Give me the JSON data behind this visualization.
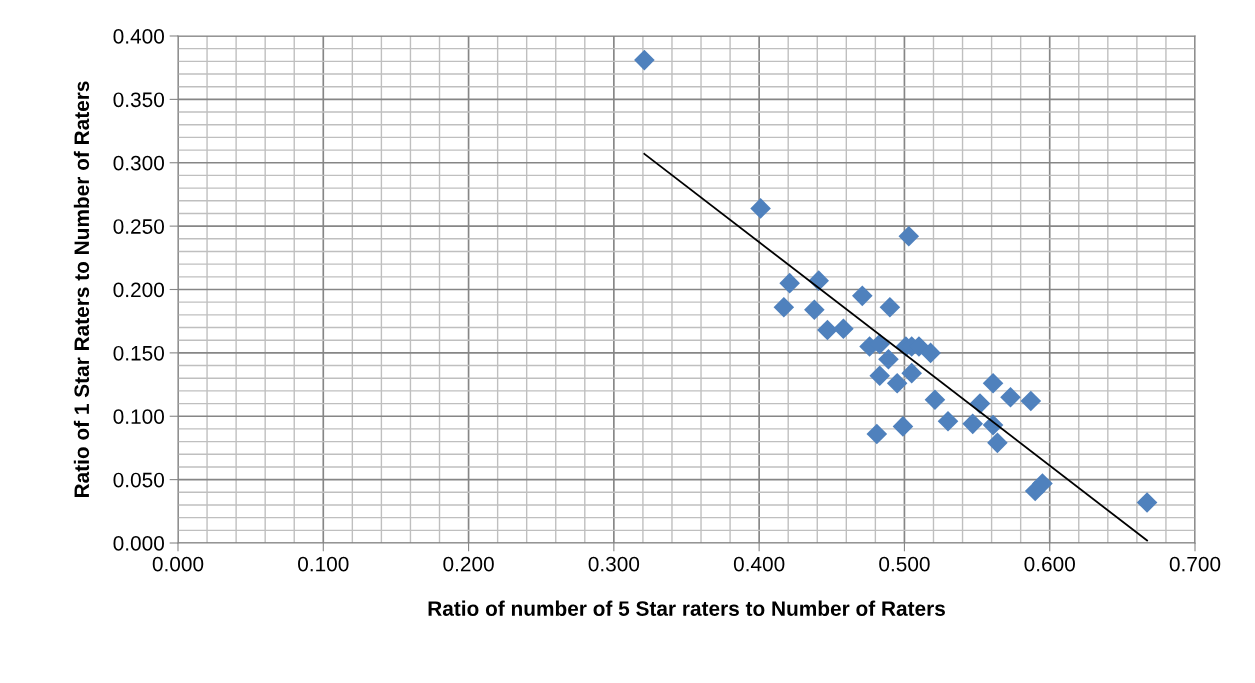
{
  "chart_data": {
    "type": "scatter",
    "xlabel": "Ratio of number of 5 Star raters to Number of Raters",
    "ylabel": "Ratio of 1 Star Raters to Number of Raters",
    "series": [
      {
        "color": "#4f81bd",
        "marker": "diamond",
        "x": [
          0.321,
          0.401,
          0.503,
          0.667,
          0.421,
          0.441,
          0.417,
          0.438,
          0.471,
          0.49,
          0.447,
          0.458,
          0.476,
          0.483,
          0.501,
          0.505,
          0.51,
          0.518,
          0.489,
          0.505,
          0.483,
          0.495,
          0.561,
          0.521,
          0.573,
          0.587,
          0.552,
          0.53,
          0.547,
          0.561,
          0.481,
          0.499,
          0.564,
          0.595,
          0.59
        ],
        "values": [
          0.381,
          0.264,
          0.242,
          0.032,
          0.205,
          0.207,
          0.186,
          0.184,
          0.195,
          0.186,
          0.168,
          0.169,
          0.155,
          0.157,
          0.155,
          0.155,
          0.155,
          0.15,
          0.145,
          0.134,
          0.132,
          0.126,
          0.126,
          0.113,
          0.115,
          0.112,
          0.11,
          0.096,
          0.094,
          0.093,
          0.086,
          0.092,
          0.079,
          0.047,
          0.041
        ]
      },
      {
        "type": "line",
        "color": "#000000",
        "marker": "none",
        "line_style": "solid",
        "x": [
          0.321,
          0.667
        ],
        "values": [
          0.307,
          0.002
        ]
      }
    ],
    "xlim": [
      0,
      0.7
    ],
    "xticks": [
      {
        "value": 0,
        "label": "0.000"
      },
      {
        "value": 0.1,
        "label": "0.100"
      },
      {
        "value": 0.2,
        "label": "0.200"
      },
      {
        "value": 0.3,
        "label": "0.300"
      },
      {
        "value": 0.4,
        "label": "0.400"
      },
      {
        "value": 0.5,
        "label": "0.500"
      },
      {
        "value": 0.6,
        "label": "0.600"
      },
      {
        "value": 0.7,
        "label": "0.700"
      }
    ],
    "ylim": [
      0,
      0.4
    ],
    "yticks": [
      {
        "value": 0,
        "label": "0.000"
      },
      {
        "value": 0.05,
        "label": "0.050"
      },
      {
        "value": 0.1,
        "label": "0.100"
      },
      {
        "value": 0.15,
        "label": "0.150"
      },
      {
        "value": 0.2,
        "label": "0.200"
      },
      {
        "value": 0.25,
        "label": "0.250"
      },
      {
        "value": 0.3,
        "label": "0.300"
      },
      {
        "value": 0.35,
        "label": "0.350"
      },
      {
        "value": 0.4,
        "label": "0.400"
      }
    ],
    "grid": true,
    "legend": false
  }
}
